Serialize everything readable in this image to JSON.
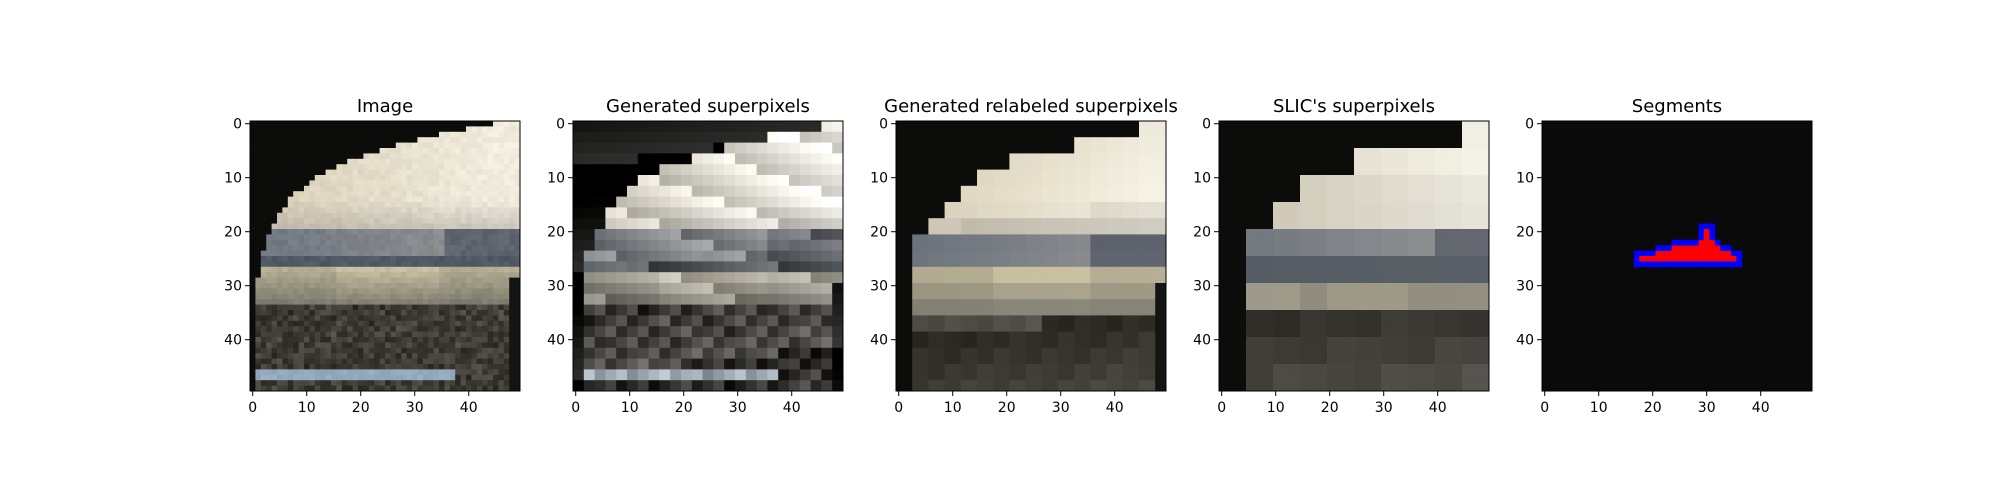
{
  "chart_data": [
    {
      "type": "image",
      "title": "Image",
      "xlim": [
        -0.5,
        49.5
      ],
      "ylim": [
        49.5,
        -0.5
      ],
      "xticks": [
        0,
        10,
        20,
        30,
        40
      ],
      "yticks": [
        0,
        10,
        20,
        30,
        40
      ],
      "xtick_labels": [
        "0",
        "10",
        "20",
        "30",
        "40"
      ],
      "ytick_labels": [
        "0",
        "10",
        "20",
        "30",
        "40"
      ],
      "content": "photo"
    },
    {
      "type": "image",
      "title": "Generated superpixels",
      "xlim": [
        -0.5,
        49.5
      ],
      "ylim": [
        49.5,
        -0.5
      ],
      "xticks": [
        0,
        10,
        20,
        30,
        40
      ],
      "yticks": [
        0,
        10,
        20,
        30,
        40
      ],
      "xtick_labels": [
        "0",
        "10",
        "20",
        "30",
        "40"
      ],
      "ytick_labels": [
        "0",
        "10",
        "20",
        "30",
        "40"
      ],
      "content": "generated"
    },
    {
      "type": "image",
      "title": "Generated relabeled superpixels",
      "xlim": [
        -0.5,
        49.5
      ],
      "ylim": [
        49.5,
        -0.5
      ],
      "xticks": [
        0,
        10,
        20,
        30,
        40
      ],
      "yticks": [
        0,
        10,
        20,
        30,
        40
      ],
      "xtick_labels": [
        "0",
        "10",
        "20",
        "30",
        "40"
      ],
      "ytick_labels": [
        "0",
        "10",
        "20",
        "30",
        "40"
      ],
      "content": "relabeled"
    },
    {
      "type": "image",
      "title": "SLIC's superpixels",
      "xlim": [
        -0.5,
        49.5
      ],
      "ylim": [
        49.5,
        -0.5
      ],
      "xticks": [
        0,
        10,
        20,
        30,
        40
      ],
      "yticks": [
        0,
        10,
        20,
        30,
        40
      ],
      "xtick_labels": [
        "0",
        "10",
        "20",
        "30",
        "40"
      ],
      "ytick_labels": [
        "0",
        "10",
        "20",
        "30",
        "40"
      ],
      "content": "slic"
    },
    {
      "type": "image",
      "title": "Segments",
      "xlim": [
        -0.5,
        49.5
      ],
      "ylim": [
        49.5,
        -0.5
      ],
      "xticks": [
        0,
        10,
        20,
        30,
        40
      ],
      "yticks": [
        0,
        10,
        20,
        30,
        40
      ],
      "xtick_labels": [
        "0",
        "10",
        "20",
        "30",
        "40"
      ],
      "ytick_labels": [
        "0",
        "10",
        "20",
        "30",
        "40"
      ],
      "content": "segments",
      "segment_colors": {
        "background": "#000000",
        "segment": "#ff0000",
        "boundary": "#0000ff"
      }
    }
  ]
}
